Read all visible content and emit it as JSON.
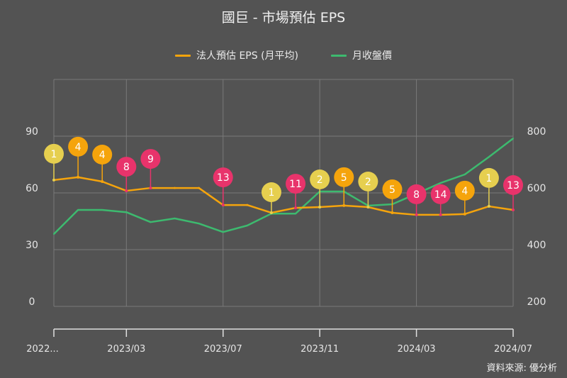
{
  "chart_data": {
    "type": "line",
    "title": "國巨 - 市場預估 EPS",
    "x": [
      "2022/12",
      "2023/01",
      "2023/02",
      "2023/03",
      "2023/04",
      "2023/05",
      "2023/06",
      "2023/07",
      "2023/08",
      "2023/09",
      "2023/10",
      "2023/11",
      "2023/12",
      "2024/01",
      "2024/02",
      "2024/03",
      "2024/04",
      "2024/05",
      "2024/06",
      "2024/07"
    ],
    "x_tick_labels": [
      "2022...",
      "2023/03",
      "2023/07",
      "2023/11",
      "2024/03",
      "2024/07"
    ],
    "x_tick_index": [
      0,
      3,
      7,
      11,
      15,
      19
    ],
    "y_left": {
      "ticks": [
        "0",
        "30",
        "60",
        "90"
      ],
      "tick_values": [
        0,
        30,
        60,
        90
      ],
      "range": [
        0,
        120
      ]
    },
    "y_right": {
      "ticks": [
        "200",
        "400",
        "600",
        "800"
      ],
      "tick_values": [
        200,
        400,
        600,
        800
      ],
      "range": [
        200,
        1000
      ]
    },
    "grid": true,
    "legend_position": "top-center",
    "series": [
      {
        "name": "法人預估 EPS (月平均)",
        "axis": "left",
        "color": "#f5a40c",
        "values": [
          66.8,
          68.3,
          66.0,
          61.1,
          62.6,
          62.6,
          62.6,
          53.6,
          53.6,
          49.5,
          52.1,
          52.5,
          53.3,
          52.5,
          49.5,
          48.4,
          48.4,
          48.8,
          52.9,
          51.0
        ]
      },
      {
        "name": "月收盤價",
        "axis": "right",
        "color": "#3dba6f",
        "values": [
          455,
          540,
          540,
          532,
          497,
          510,
          492,
          462,
          485,
          527,
          527,
          605,
          605,
          555,
          560,
          597,
          635,
          665,
          727,
          792
        ]
      }
    ],
    "flags": [
      {
        "index": 0,
        "label": "1",
        "color": "#e6cf4f"
      },
      {
        "index": 1,
        "label": "4",
        "color": "#f5a40c"
      },
      {
        "index": 2,
        "label": "4",
        "color": "#f5a40c"
      },
      {
        "index": 3,
        "label": "8",
        "color": "#e8336b"
      },
      {
        "index": 4,
        "label": "9",
        "color": "#e8336b"
      },
      {
        "index": 7,
        "label": "13",
        "color": "#e8336b"
      },
      {
        "index": 9,
        "label": "1",
        "color": "#e6cf4f"
      },
      {
        "index": 10,
        "label": "11",
        "color": "#e8336b"
      },
      {
        "index": 11,
        "label": "2",
        "color": "#e6cf4f"
      },
      {
        "index": 12,
        "label": "5",
        "color": "#f5a40c"
      },
      {
        "index": 13,
        "label": "2",
        "color": "#e6cf4f"
      },
      {
        "index": 14,
        "label": "5",
        "color": "#f5a40c"
      },
      {
        "index": 15,
        "label": "8",
        "color": "#e8336b"
      },
      {
        "index": 16,
        "label": "14",
        "color": "#e8336b"
      },
      {
        "index": 17,
        "label": "4",
        "color": "#f5a40c"
      },
      {
        "index": 18,
        "label": "1",
        "color": "#e6cf4f"
      },
      {
        "index": 19,
        "label": "13",
        "color": "#e8336b"
      }
    ],
    "source": "資料來源: 優分析"
  },
  "colors": {
    "background": "#535353",
    "grid": "#7a7a7a",
    "axis": "#e0e0e0"
  }
}
